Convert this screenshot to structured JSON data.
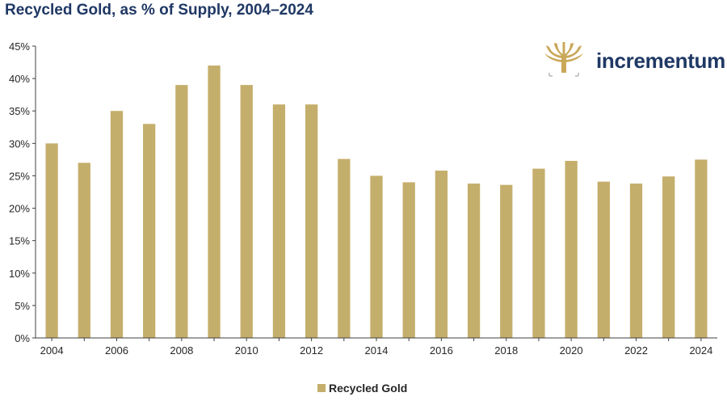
{
  "chart_data": {
    "type": "bar",
    "title": "Recycled Gold, as % of Supply, 2004–2024",
    "categories": [
      "2004",
      "2005",
      "2006",
      "2007",
      "2008",
      "2009",
      "2010",
      "2011",
      "2012",
      "2013",
      "2014",
      "2015",
      "2016",
      "2017",
      "2018",
      "2019",
      "2020",
      "2021",
      "2022",
      "2023",
      "2024"
    ],
    "x_tick_labels": [
      "2004",
      "",
      "2006",
      "",
      "2008",
      "",
      "2010",
      "",
      "2012",
      "",
      "2014",
      "",
      "2016",
      "",
      "2018",
      "",
      "2020",
      "",
      "2022",
      "",
      "2024"
    ],
    "series": [
      {
        "name": "Recycled Gold",
        "values": [
          30.0,
          27.0,
          35.0,
          33.0,
          39.0,
          42.0,
          39.0,
          36.0,
          36.0,
          27.6,
          25.0,
          24.0,
          25.8,
          23.8,
          23.6,
          26.1,
          27.3,
          24.1,
          23.8,
          24.9,
          27.5
        ]
      }
    ],
    "ylim": [
      0,
      45
    ],
    "y_ticks": [
      "0%",
      "5%",
      "10%",
      "15%",
      "20%",
      "25%",
      "30%",
      "35%",
      "40%",
      "45%"
    ],
    "xlabel": "",
    "ylabel": "",
    "grid": false,
    "legend": "bottom-center"
  },
  "brand": {
    "name": "incrementum",
    "logo_color": "#c9a85a",
    "text_color": "#1f3864"
  },
  "colors": {
    "bar": "#c4ae6b",
    "axis": "#404040",
    "title": "#1f3864"
  }
}
